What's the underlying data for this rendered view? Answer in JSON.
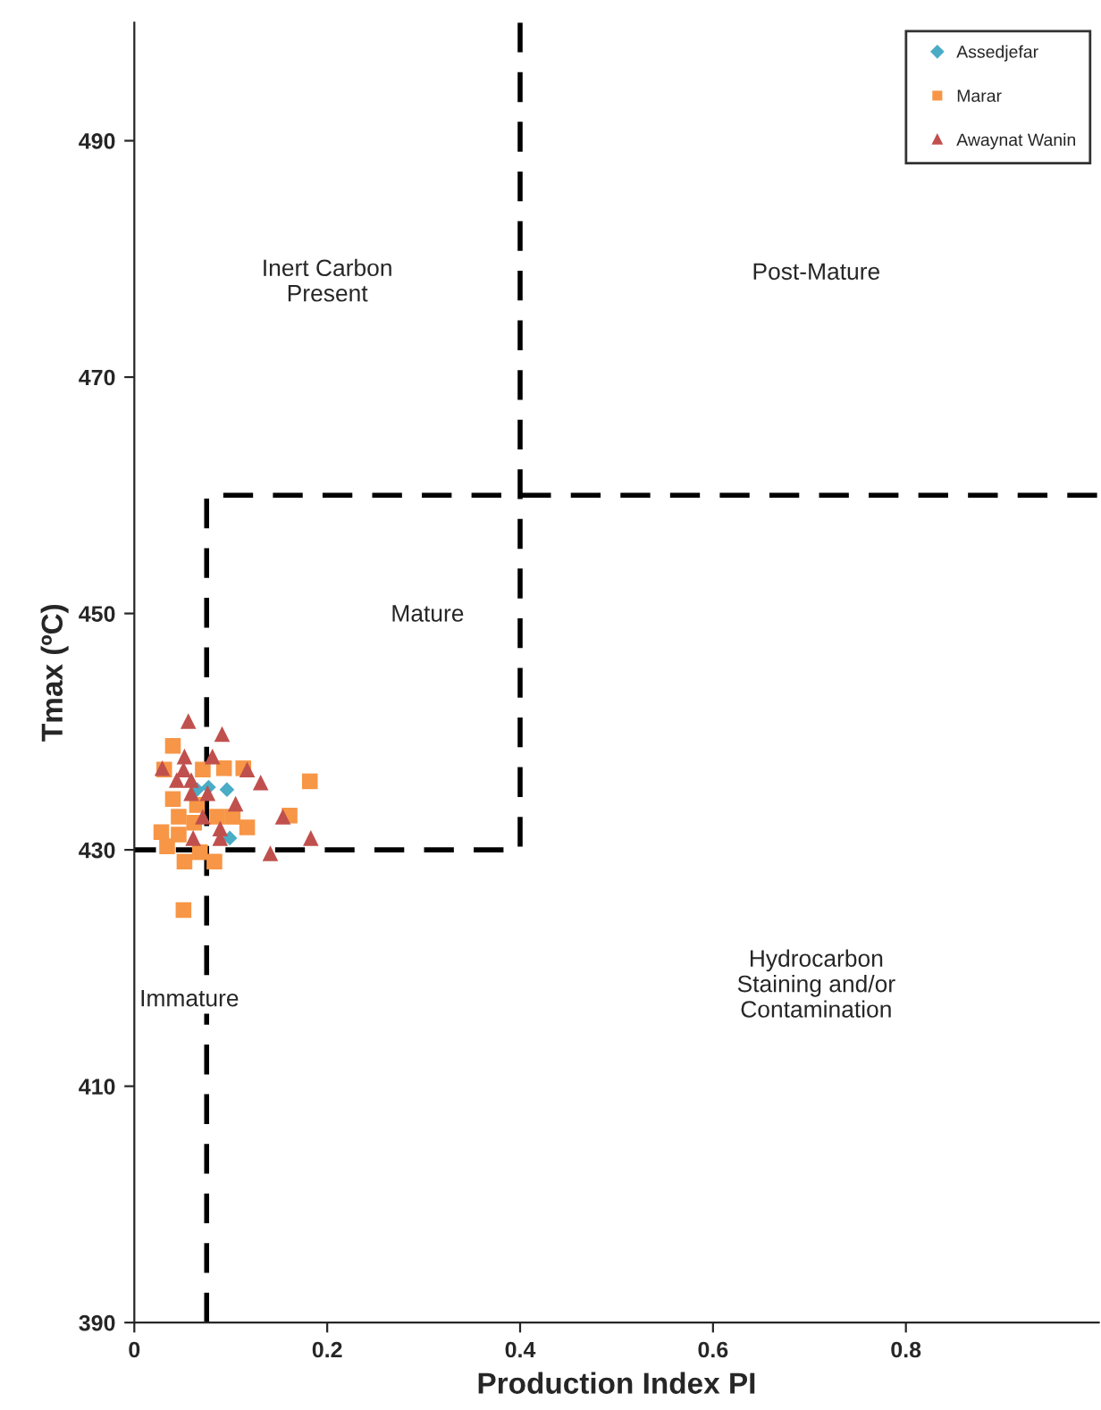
{
  "chart_data": {
    "type": "scatter",
    "xlabel": "Production Index PI",
    "ylabel": "Tmax (ºC)",
    "xlim": [
      0,
      1
    ],
    "ylim": [
      390,
      500
    ],
    "xticks": [
      0,
      0.2,
      0.4,
      0.6,
      0.8
    ],
    "yticks": [
      390,
      410,
      430,
      450,
      470,
      490
    ],
    "legend": "top right",
    "series": [
      {
        "name": "Assedjefar",
        "color": "#4bacc6",
        "marker": "diamond",
        "x": [
          0.065,
          0.096,
          0.099,
          0.077
        ],
        "values": [
          435.1,
          435.1,
          431.0,
          435.3
        ]
      },
      {
        "name": "Marar",
        "color": "#f79646",
        "marker": "square",
        "x": [
          0.04,
          0.031,
          0.071,
          0.093,
          0.113,
          0.182,
          0.04,
          0.065,
          0.046,
          0.086,
          0.102,
          0.161,
          0.028,
          0.117,
          0.046,
          0.052,
          0.068,
          0.083,
          0.051,
          0.034,
          0.062
        ],
        "values": [
          438.8,
          436.8,
          436.8,
          436.9,
          436.9,
          435.8,
          434.3,
          433.8,
          432.8,
          432.8,
          432.8,
          432.9,
          431.5,
          431.9,
          431.3,
          429.0,
          429.8,
          429.0,
          424.9,
          430.3,
          432.3
        ]
      },
      {
        "name": "Awaynat Wanin",
        "color": "#c0504d",
        "marker": "triangle",
        "x": [
          0.056,
          0.091,
          0.052,
          0.081,
          0.029,
          0.051,
          0.117,
          0.044,
          0.059,
          0.131,
          0.076,
          0.059,
          0.105,
          0.071,
          0.154,
          0.089,
          0.061,
          0.089,
          0.183,
          0.141
        ],
        "values": [
          440.9,
          439.8,
          437.9,
          437.9,
          436.9,
          436.8,
          436.8,
          435.9,
          435.9,
          435.7,
          434.8,
          434.8,
          433.9,
          432.8,
          432.8,
          431.8,
          431.0,
          431.0,
          431.0,
          429.7
        ]
      },
      {
        "type": "line",
        "color": "#000000",
        "marker": "none",
        "line_style": "dashed",
        "x": [
          0.4,
          0.4,
          0.0
        ],
        "values": [
          500,
          430,
          430
        ]
      },
      {
        "type": "line",
        "color": "#000000",
        "marker": "none",
        "line_style": "dashed",
        "x": [
          0.075,
          0.075,
          1.0
        ],
        "values": [
          390,
          460,
          460
        ]
      }
    ],
    "annotations": [
      "Inert Carbon\nPresent",
      "Post-Mature",
      "Mature",
      "Immature",
      "Hydrocarbon\nStaining and/or\nContamination"
    ]
  }
}
